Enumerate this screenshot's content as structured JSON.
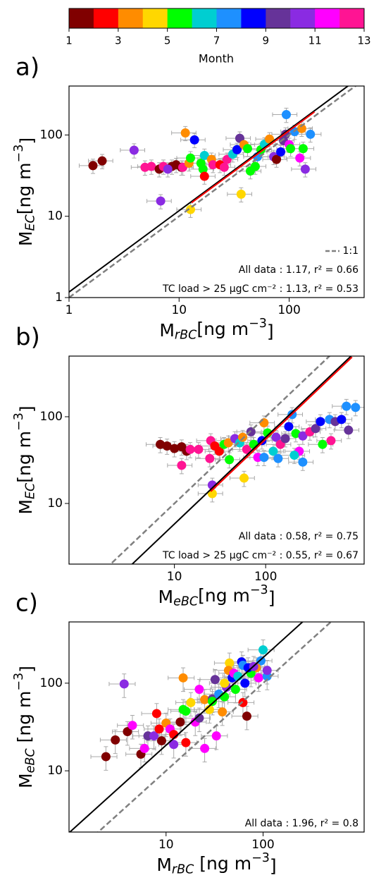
{
  "colorbar": {
    "label": "Month",
    "lim": [
      1,
      13
    ],
    "ticks": [
      1,
      3,
      5,
      7,
      9,
      11,
      13
    ],
    "colors": [
      "#800000",
      "#ff0000",
      "#ff8c00",
      "#ffd700",
      "#00ff00",
      "#00ced1",
      "#1e90ff",
      "#0000ff",
      "#663399",
      "#8a2be2",
      "#ff00ff",
      "#ff1493"
    ]
  },
  "chart_data": [
    {
      "type": "scatter",
      "panel_label": "a)",
      "xlabel": {
        "base": "M",
        "sub": "rBC",
        "unit": "[ng m",
        "sup": "−3",
        "close": "]"
      },
      "ylabel": {
        "base": "M",
        "sub": "EC",
        "unit": "[ng m",
        "sup": "−3",
        "close": "]"
      },
      "log_x": true,
      "log_y": true,
      "xlim": [
        1,
        480
      ],
      "ylim": [
        1,
        400
      ],
      "xticks": [
        1,
        10,
        100
      ],
      "yticks": [
        1,
        10,
        100
      ],
      "x": [
        1.65,
        2.0,
        3.9,
        4.9,
        5.6,
        6.6,
        7.2,
        8.6,
        7.9,
        9.4,
        10.5,
        10.8,
        6.8,
        12.7,
        11.4,
        13.8,
        12.3,
        12.7,
        15.8,
        16.5,
        17,
        19.7,
        20.3,
        23.5,
        25.7,
        27.3,
        30.7,
        33.6,
        35.6,
        38.9,
        41.9,
        36.6,
        44.4,
        49.2,
        51.5,
        55.4,
        59.7,
        66.2,
        72.3,
        76.7,
        83.8,
        88.9,
        92.9,
        100,
        94.2,
        103,
        112,
        125,
        134,
        140,
        130,
        156,
        17
      ],
      "values": [
        42,
        48,
        65,
        40,
        41,
        38,
        41,
        41,
        38,
        43,
        40,
        40,
        15.4,
        12.1,
        106,
        87,
        45,
        52,
        45,
        38,
        56,
        50,
        43,
        43,
        40,
        50,
        58,
        66,
        91,
        76,
        68,
        18.7,
        36,
        41,
        54,
        66,
        77,
        89,
        54,
        50,
        62,
        85,
        102,
        76,
        178,
        68,
        110,
        52,
        68,
        38,
        120,
        102,
        31
      ],
      "month": [
        1,
        1,
        10,
        12,
        12,
        1,
        12,
        1,
        10,
        1,
        1,
        12,
        10,
        4,
        3,
        8,
        3,
        5,
        5,
        5,
        6,
        3,
        12,
        2,
        12,
        12,
        6,
        8,
        9,
        3,
        5,
        4,
        5,
        5,
        7,
        5,
        6,
        3,
        10,
        1,
        8,
        9,
        9,
        11,
        7,
        5,
        7,
        11,
        5,
        10,
        3,
        7,
        2
      ],
      "xerr_frac": 0.25,
      "yerr_frac": 0.2,
      "errorbar_color": "#a9a9a9",
      "one_to_one": {
        "label": "1:1",
        "color": "#808080"
      },
      "fits": [
        {
          "slope": 1.17,
          "label": "All data : 1.17, r² = 0.66",
          "color": "#000000"
        },
        {
          "slope": 1.13,
          "label": "TC load > 25 μgC cm⁻² : 1.13, r² = 0.53",
          "color": "#ff0000",
          "x_range": [
            13,
            170
          ]
        }
      ]
    },
    {
      "type": "scatter",
      "panel_label": "b)",
      "xlabel": {
        "base": "M",
        "sub": "eBC",
        "unit": "[ng m",
        "sup": "−3",
        "close": "]"
      },
      "ylabel": {
        "base": "M",
        "sub": "EC",
        "unit": "[ng m",
        "sup": "−3",
        "close": "]"
      },
      "log_x": true,
      "log_y": true,
      "xlim": [
        0.7,
        1200
      ],
      "ylim": [
        2,
        500
      ],
      "xticks": [
        10,
        100
      ],
      "yticks": [
        10,
        100
      ],
      "x": [
        7.0,
        8.3,
        10,
        12.0,
        13.6,
        14.9,
        18.4,
        12.0,
        24.4,
        25,
        27.7,
        26,
        26,
        31,
        35,
        39,
        40,
        46,
        52,
        56,
        62,
        69,
        74,
        82,
        58,
        91,
        96,
        105,
        121,
        130,
        145,
        164,
        179,
        195,
        214,
        233,
        255,
        305,
        352,
        398,
        501,
        578,
        678,
        767,
        966,
        809,
        520,
        420,
        96,
        137,
        206,
        255
      ],
      "values": [
        48,
        46,
        43,
        45,
        40,
        42,
        42,
        27.5,
        33,
        53,
        46,
        16.3,
        13,
        40,
        48,
        50,
        32,
        56,
        50,
        58,
        42,
        67,
        48,
        34,
        19.6,
        53,
        85,
        65,
        40,
        58,
        48,
        56,
        77,
        106,
        64,
        40,
        60,
        67,
        73,
        88,
        93,
        88,
        93,
        132,
        128,
        70,
        53,
        48,
        34,
        33,
        36,
        30
      ],
      "month": [
        1,
        1,
        1,
        1,
        1,
        12,
        12,
        12,
        12,
        12,
        2,
        10,
        4,
        2,
        5,
        3,
        5,
        10,
        6,
        3,
        12,
        9,
        5,
        11,
        4,
        8,
        3,
        5,
        6,
        10,
        12,
        9,
        8,
        7,
        5,
        11,
        10,
        12,
        9,
        8,
        7,
        9,
        8,
        7,
        7,
        9,
        12,
        5,
        7,
        7,
        6,
        7
      ],
      "xerr_frac": 0.3,
      "yerr_frac": 0.2,
      "errorbar_color": "#a9a9a9",
      "one_to_one": {
        "color": "#808080"
      },
      "fits": [
        {
          "slope": 0.58,
          "label": "All data : 0.58, r² = 0.75",
          "color": "#000000"
        },
        {
          "slope": 0.55,
          "label": "TC load > 25 μgC cm⁻² : 0.55, r² = 0.67",
          "color": "#ff0000",
          "x_range": [
            25,
            885
          ]
        }
      ]
    },
    {
      "type": "scatter",
      "panel_label": "c)",
      "xlabel": {
        "base": "M",
        "sub": "rBC",
        "unit": " [ng m",
        "sup": "−3",
        "close": "]"
      },
      "ylabel": {
        "base": "M",
        "sub": "eBC",
        "unit": " [ng m",
        "sup": "−3",
        "close": "]"
      },
      "log_x": true,
      "log_y": true,
      "xlim": [
        1,
        1100
      ],
      "ylim": [
        2,
        500
      ],
      "xticks": [
        10,
        100
      ],
      "yticks": [
        10,
        100
      ],
      "x": [
        2.4,
        3.0,
        5.5,
        4.0,
        3.7,
        4.5,
        6.0,
        9.0,
        6.5,
        7.5,
        8.0,
        8.5,
        10,
        12,
        11,
        12,
        14,
        15,
        15,
        16,
        16,
        18,
        20,
        22,
        25,
        22,
        25,
        28,
        30,
        30,
        33,
        32,
        35,
        40,
        38,
        45,
        44,
        42,
        48,
        50,
        52,
        55,
        60,
        62,
        65,
        62,
        68,
        90,
        95,
        100,
        110,
        110,
        85,
        75,
        70,
        40,
        80
      ],
      "values": [
        14.5,
        22.5,
        15.5,
        28,
        98,
        33,
        18,
        22,
        25,
        25,
        45,
        30,
        35,
        20,
        30,
        26,
        36,
        115,
        50,
        48,
        21,
        60,
        36,
        85,
        18,
        40,
        65,
        50,
        66,
        62,
        25,
        110,
        75,
        70,
        47,
        170,
        140,
        90,
        115,
        130,
        85,
        120,
        175,
        160,
        100,
        60,
        42,
        115,
        180,
        240,
        120,
        140,
        150,
        130,
        150,
        100,
        155
      ],
      "month": [
        1,
        1,
        1,
        1,
        10,
        11,
        11,
        1,
        9,
        10,
        2,
        2,
        3,
        10,
        11,
        2,
        1,
        3,
        5,
        5,
        2,
        4,
        11,
        11,
        11,
        9,
        3,
        4,
        9,
        5,
        11,
        9,
        7,
        5,
        3,
        4,
        3,
        10,
        8,
        11,
        5,
        6,
        8,
        7,
        8,
        2,
        1,
        11,
        7,
        6,
        7,
        10,
        3,
        5,
        8,
        4,
        10
      ],
      "xerr_frac": 0.3,
      "yerr_frac": 0.3,
      "errorbar_color": "#a9a9a9",
      "one_to_one": {
        "color": "#808080"
      },
      "fits": [
        {
          "slope": 1.96,
          "label": "All data : 1.96, r² = 0.8",
          "color": "#000000"
        }
      ]
    }
  ]
}
